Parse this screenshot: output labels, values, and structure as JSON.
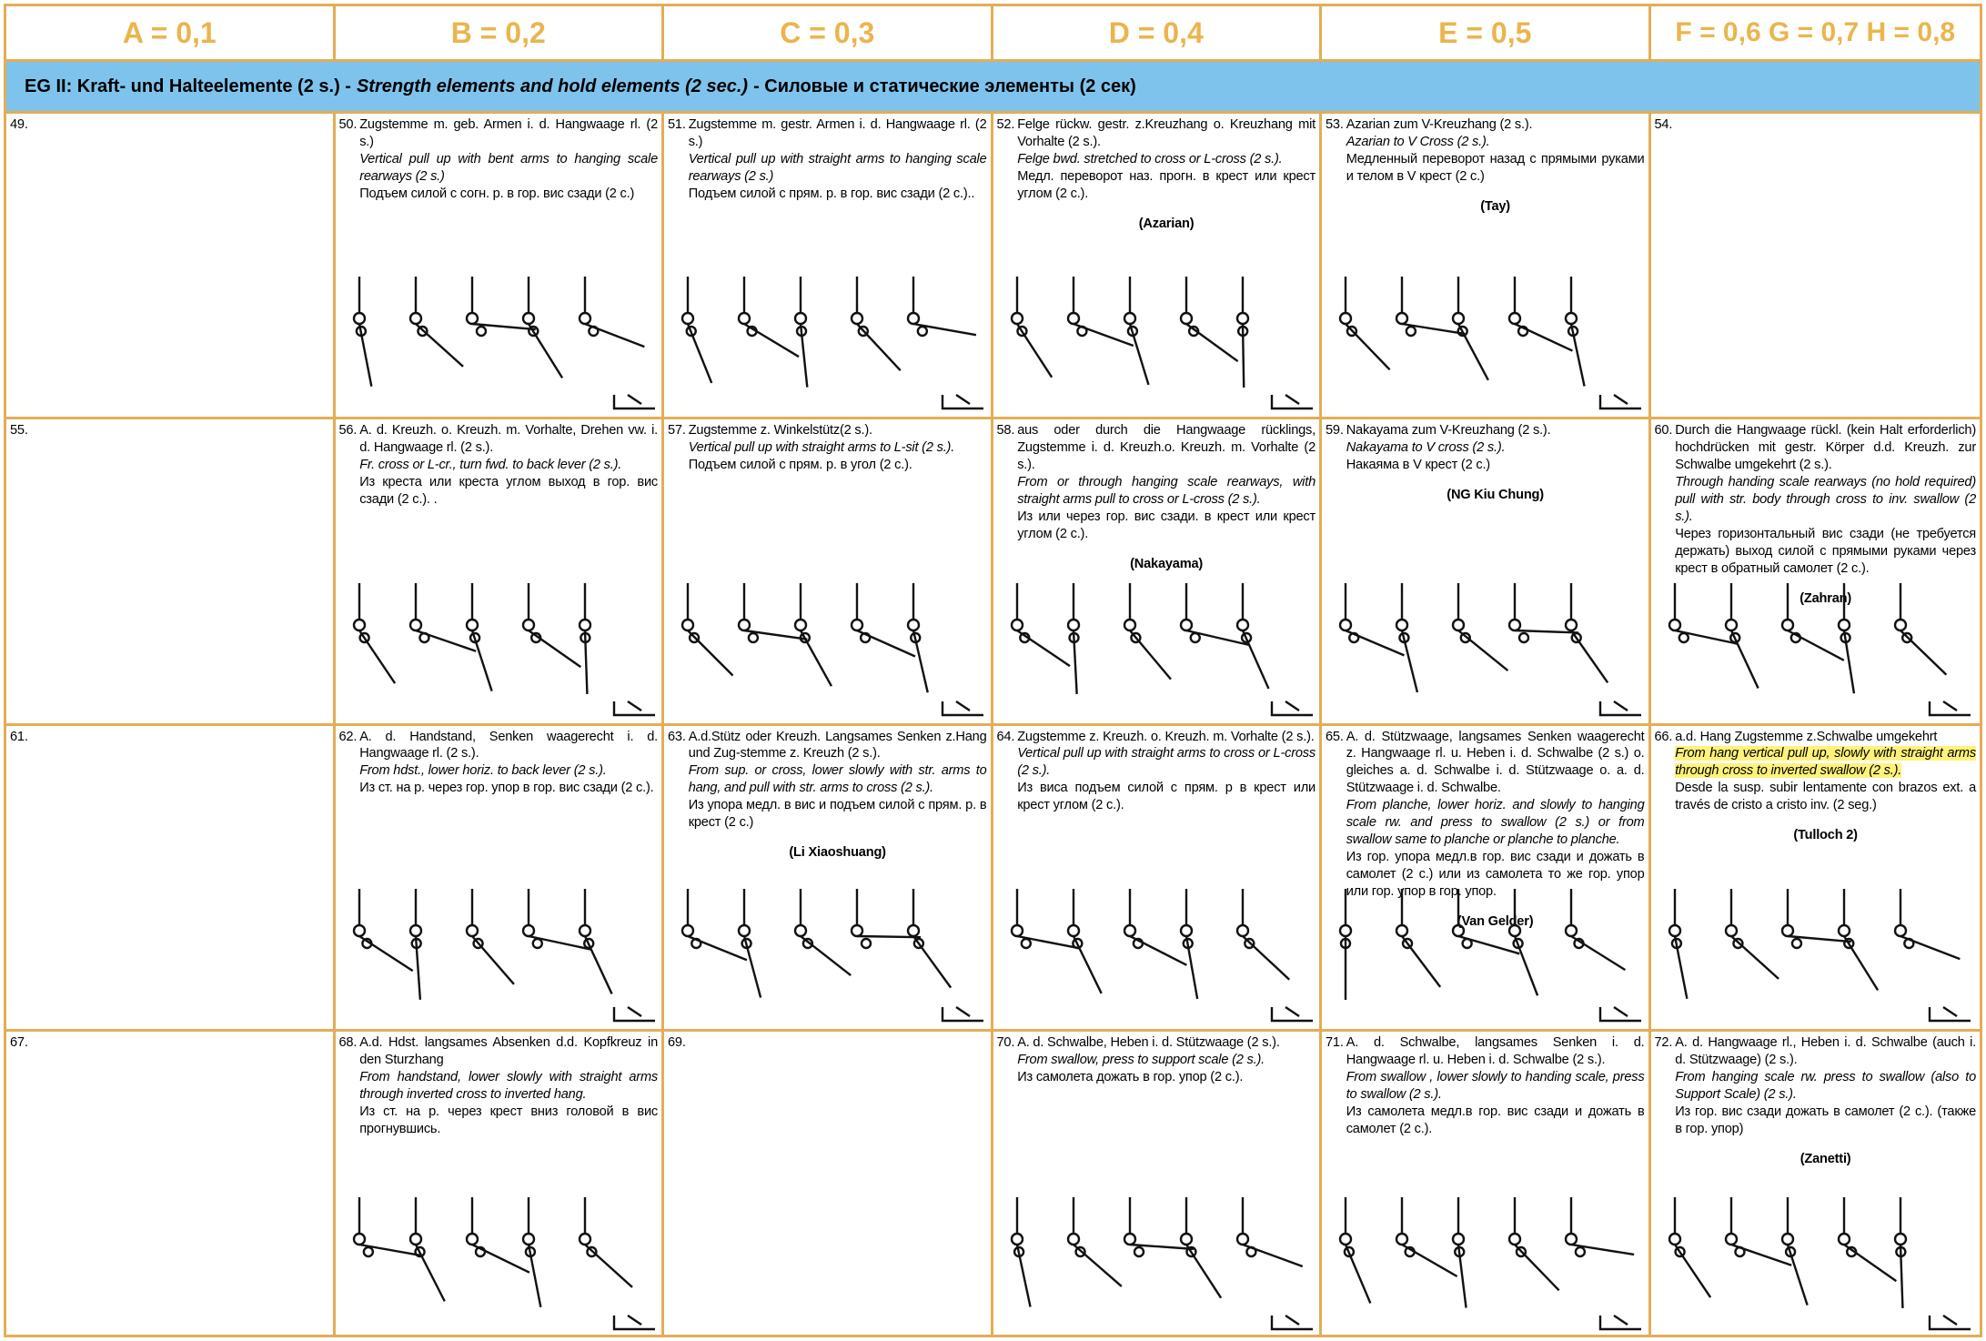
{
  "header": {
    "columns": [
      "A = 0,1",
      "B = 0,2",
      "C = 0,3",
      "D = 0,4",
      "E = 0,5",
      "F = 0,6 G = 0,7 H = 0,8"
    ]
  },
  "banner": [
    "EG II:  Kraft- und Halteelemente (2 s.) -",
    "Strength elements and hold elements (2 sec.)",
    "- Силовые и статические элементы (2 сек)"
  ],
  "rows": [
    [
      {
        "number": "49."
      },
      {
        "number": "50.",
        "de": "Zugstemme m. geb. Armen i. d. Hangwaage rl. (2 s.)",
        "en": "Vertical pull up with bent arms to hanging scale rearways (2 s.)",
        "ru": "Подъем силой с согн. р. в гор. вис сзади (2 с.)"
      },
      {
        "number": "51.",
        "de": "Zugstemme m. gestr. Armen i. d. Hangwaage rl. (2 s.)",
        "en": "Vertical pull up with straight arms to hanging scale rearways (2 s.)",
        "ru": "Подъем силой с прям. р. в гор. вис сзади (2 с.).."
      },
      {
        "number": "52.",
        "de": "Felge rückw. gestr. z.Kreuzhang o. Kreuzhang mit Vorhalte (2 s.).",
        "en": "Felge bwd. stretched to cross or L-cross (2 s.).",
        "ru": "Медл. переворот наз. прогн. в крест или крест углом (2 с.).",
        "athlete": "(Azarian)"
      },
      {
        "number": "53.",
        "de": "Azarian zum V-Kreuzhang (2 s.).",
        "en": "Azarian to V Cross (2 s.).",
        "ru": "Медленный переворот назад с прямыми руками и телом в V крест (2 с.)",
        "athlete": "(Tay)"
      },
      {
        "number": "54."
      }
    ],
    [
      {
        "number": "55."
      },
      {
        "number": "56.",
        "de": "A. d. Kreuzh. o. Kreuzh. m. Vorhalte, Drehen vw. i. d. Hangwaage rl. (2 s.).",
        "en": "Fr. cross or L-cr., turn fwd. to back lever (2 s.).",
        "ru": "Из креста или креста углом выход в гор. вис сзади (2 с.). ."
      },
      {
        "number": "57.",
        "de": "Zugstemme z. Winkelstütz(2 s.).",
        "en": "Vertical pull up with straight arms to L-sit (2 s.).",
        "ru": "Подъем силой с прям. р. в угол (2 с.)."
      },
      {
        "number": "58.",
        "de": "aus oder durch die Hangwaage rücklings, Zugstemme i. d. Kreuzh.o. Kreuzh. m. Vorhalte (2 s.).",
        "en": "From or through hanging scale rearways, with straight arms pull to cross or L-cross (2 s.).",
        "ru": "Из или через гор. вис сзади. в крест или крест углом (2 с.).",
        "athlete": "(Nakayama)"
      },
      {
        "number": "59.",
        "de": "Nakayama zum V-Kreuzhang (2 s.).",
        "en": "Nakayama to V cross (2 s.).",
        "ru": "Накаяма в V крест (2 с.)",
        "athlete": "(NG Kiu Chung)"
      },
      {
        "number": "60.",
        "de": "Durch die Hangwaage rückl. (kein Halt erforderlich) hochdrücken mit gestr. Körper d.d. Kreuzh. zur Schwalbe umgekehrt (2 s.).",
        "en": "Through handing scale rearways (no hold required) pull with str. body through cross to inv. swallow (2 s.).",
        "ru": "Через горизонтальный вис сзади (не требуется держать) выход силой с прямыми руками через крест в обратный самолет (2 с.).",
        "athlete": "(Zahran)"
      }
    ],
    [
      {
        "number": "61."
      },
      {
        "number": "62.",
        "de": "A. d. Handstand, Senken waagerecht i. d. Hangwaage rl. (2 s.).",
        "en": "From hdst., lower horiz. to back lever (2 s.).",
        "ru": "Из ст. на р. через гор. упор в гор. вис сзади (2 с.)."
      },
      {
        "number": "63.",
        "de": "A.d.Stütz oder Kreuzh. Langsames Senken z.Hang und Zug-stemme z. Kreuzh (2 s.).",
        "en": "From sup. or cross, lower slowly with str. arms to hang, and pull with str. arms to cross (2 s.).",
        "ru": "Из упора медл. в вис и подъем силой с прям. р. в крест (2 с.)",
        "athlete": "(Li Xiaoshuang)"
      },
      {
        "number": "64.",
        "de": "Zugstemme z. Kreuzh. o. Kreuzh. m. Vorhalte (2 s.).",
        "en": "Vertical pull up with straight arms to cross or L-cross (2 s.).",
        "ru": "Из виса подъем силой с прям. р в крест или крест углом (2 с.)."
      },
      {
        "number": "65.",
        "de": "A. d. Stützwaage, langsames Senken waagerecht z. Hangwaage rl. u. Heben i. d. Schwalbe (2 s.) o. gleiches a. d. Schwalbe i. d. Stützwaage o. a. d. Stützwaage i. d. Schwalbe.",
        "en": "From planche, lower horiz. and slowly to hanging scale rw. and press to swallow (2 s.) or from swallow same to planche or planche to planche.",
        "ru": "Из гор. упора медл.в гор. вис сзади и дожать в самолет (2 с.) или из самолета то же гор. упор или гор. упор в гор. упор.",
        "athlete": "(Van Gelder)"
      },
      {
        "number": "66.",
        "de": "a.d. Hang Zugstemme z.Schwalbe umgekehrt",
        "en": "From hang vertical pull up, slowly with straight arms through cross to inverted swallow (2 s.).",
        "highlight": true,
        "es": "Desde la susp. subir lentamente con brazos ext. a través de cristo a cristo inv. (2 seg.)",
        "athlete": "(Tulloch 2)"
      }
    ],
    [
      {
        "number": "67."
      },
      {
        "number": "68.",
        "de": "A.d. Hdst. langsames Absenken d.d. Kopfkreuz in den Sturzhang",
        "en": "From handstand, lower slowly with straight arms through inverted cross to inverted hang.",
        "ru": "Из ст. на р. через крест вниз головой в вис прогнувшись."
      },
      {
        "number": "69."
      },
      {
        "number": "70.",
        "de": "A. d. Schwalbe, Heben i. d. Stützwaage (2 s.).",
        "en": "From swallow, press to support scale (2 s.).",
        "ru": "Из самолета дожать в гор. упор (2 с.)."
      },
      {
        "number": "71.",
        "de": "A. d. Schwalbe, langsames Senken i. d. Hangwaage rl. u. Heben i. d. Schwalbe (2 s.).",
        "en": "From swallow , lower slowly to handing scale, press to swallow (2 s.).",
        "ru": "Из самолета медл.в гор. вис сзади и дожать в самолет (2 с.)."
      },
      {
        "number": "72.",
        "de": "A. d. Hangwaage rl., Heben i. d. Schwalbe (auch i. d. Stützwaage) (2 s.).",
        "en": "From hanging scale rw. press to swallow (also to Support Scale) (2 s.).",
        "ru": "Из гор. вис сзади дожать в самолет (2 с.). (также в гор. упор)",
        "athlete": "(Zanetti)"
      }
    ]
  ]
}
